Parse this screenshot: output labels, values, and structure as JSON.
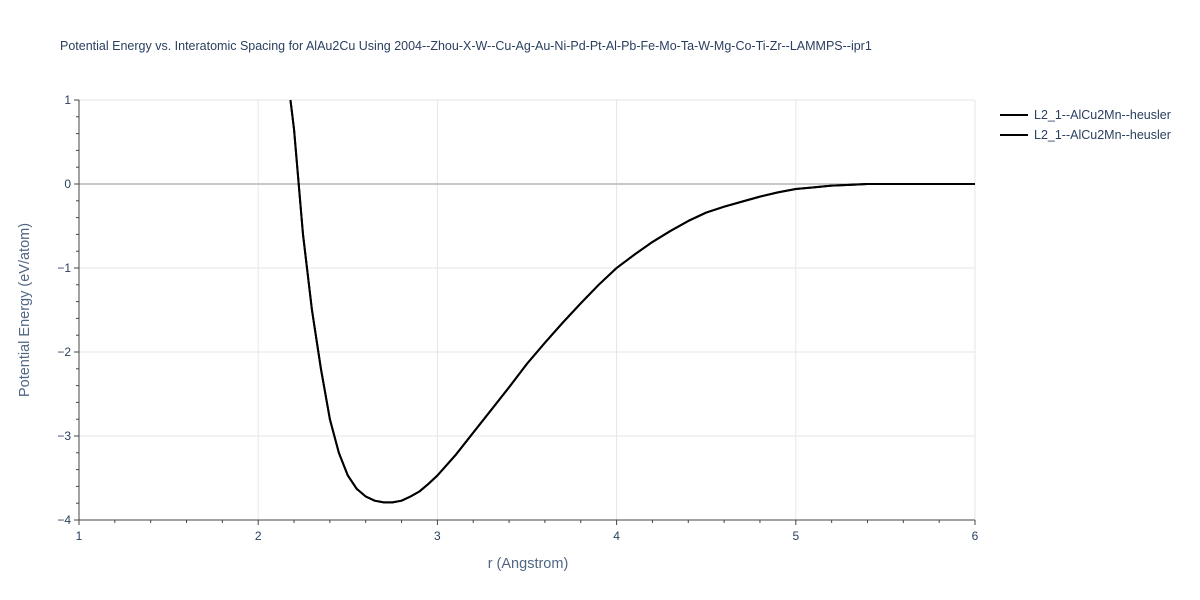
{
  "chart_data": {
    "type": "line",
    "title": "Potential Energy vs. Interatomic Spacing for AlAu2Cu Using 2004--Zhou-X-W--Cu-Ag-Au-Ni-Pd-Pt-Al-Pb-Fe-Mo-Ta-W-Mg-Co-Ti-Zr--LAMMPS--ipr1",
    "xlabel": "r (Angstrom)",
    "ylabel": "Potential Energy (eV/atom)",
    "xlim": [
      1,
      6
    ],
    "ylim": [
      -4,
      1
    ],
    "x_ticks": [
      1,
      2,
      3,
      4,
      5,
      6
    ],
    "x_tick_labels": [
      "1",
      "2",
      "3",
      "4",
      "5",
      "6"
    ],
    "y_ticks": [
      1,
      0,
      -1,
      -2,
      -3,
      -4
    ],
    "y_tick_labels": [
      "1",
      "0",
      "−1",
      "−2",
      "−3",
      "−4"
    ],
    "grid": true,
    "legend_position": "top-right",
    "line_color": "#000000",
    "series": [
      {
        "name": "L2_1--AlCu2Mn--heusler",
        "x": [
          2.18,
          2.2,
          2.25,
          2.3,
          2.35,
          2.4,
          2.45,
          2.5,
          2.55,
          2.6,
          2.65,
          2.7,
          2.75,
          2.8,
          2.85,
          2.9,
          2.95,
          3.0,
          3.1,
          3.2,
          3.3,
          3.4,
          3.5,
          3.6,
          3.7,
          3.8,
          3.9,
          4.0,
          4.1,
          4.2,
          4.3,
          4.4,
          4.5,
          4.6,
          4.7,
          4.8,
          4.9,
          5.0,
          5.1,
          5.2,
          5.3,
          5.4,
          5.5,
          5.6,
          5.8,
          6.0
        ],
        "y": [
          1.0,
          0.65,
          -0.6,
          -1.5,
          -2.2,
          -2.8,
          -3.2,
          -3.47,
          -3.63,
          -3.72,
          -3.77,
          -3.79,
          -3.79,
          -3.77,
          -3.72,
          -3.66,
          -3.57,
          -3.47,
          -3.23,
          -2.96,
          -2.69,
          -2.42,
          -2.14,
          -1.89,
          -1.65,
          -1.42,
          -1.2,
          -1.0,
          -0.84,
          -0.69,
          -0.56,
          -0.44,
          -0.34,
          -0.27,
          -0.21,
          -0.15,
          -0.1,
          -0.06,
          -0.04,
          -0.02,
          -0.01,
          0.0,
          0.0,
          0.0,
          0.0,
          0.0
        ]
      },
      {
        "name": "L2_1--AlCu2Mn--heusler",
        "x": [
          2.18,
          2.2,
          2.25,
          2.3,
          2.35,
          2.4,
          2.45,
          2.5,
          2.55,
          2.6,
          2.65,
          2.7,
          2.75,
          2.8,
          2.85,
          2.9,
          2.95,
          3.0,
          3.1,
          3.2,
          3.3,
          3.4,
          3.5,
          3.6,
          3.7,
          3.8,
          3.9,
          4.0,
          4.1,
          4.2,
          4.3,
          4.4,
          4.5,
          4.6,
          4.7,
          4.8,
          4.9,
          5.0,
          5.1,
          5.2,
          5.3,
          5.4,
          5.5,
          5.6,
          5.8,
          6.0
        ],
        "y": [
          1.0,
          0.65,
          -0.6,
          -1.5,
          -2.2,
          -2.8,
          -3.2,
          -3.47,
          -3.63,
          -3.72,
          -3.77,
          -3.79,
          -3.79,
          -3.77,
          -3.72,
          -3.66,
          -3.57,
          -3.47,
          -3.23,
          -2.96,
          -2.69,
          -2.42,
          -2.14,
          -1.89,
          -1.65,
          -1.42,
          -1.2,
          -1.0,
          -0.84,
          -0.69,
          -0.56,
          -0.44,
          -0.34,
          -0.27,
          -0.21,
          -0.15,
          -0.1,
          -0.06,
          -0.04,
          -0.02,
          -0.01,
          0.0,
          0.0,
          0.0,
          0.0,
          0.0
        ]
      }
    ]
  }
}
